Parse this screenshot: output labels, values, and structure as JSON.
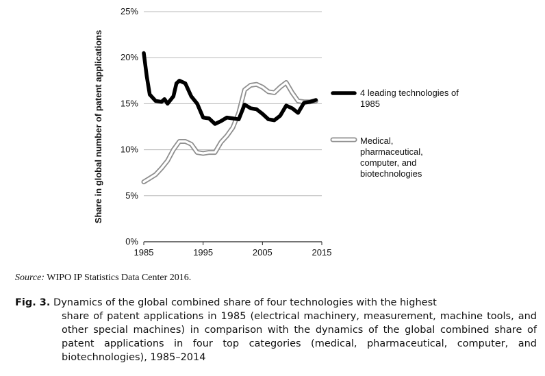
{
  "chart_data": {
    "type": "line",
    "title": "",
    "xlabel": "",
    "ylabel": "Share in global number of patent applications",
    "xlim": [
      1985,
      2015
    ],
    "ylim": [
      0,
      25
    ],
    "x_ticks": [
      "1985",
      "1995",
      "2005",
      "2015"
    ],
    "y_ticks": [
      "0%",
      "5%",
      "10%",
      "15%",
      "20%",
      "25%"
    ],
    "grid": "horizontal",
    "legend_position": "right",
    "series": [
      {
        "name": "4 leading technologies of 1985",
        "style": "black-thick",
        "x": [
          1985,
          1985.5,
          1986,
          1987,
          1988,
          1988.5,
          1989,
          1990,
          1990.5,
          1991,
          1992,
          1993,
          1994,
          1995,
          1996,
          1997,
          1998,
          1999,
          2000,
          2001,
          2002,
          2003,
          2004,
          2005,
          2006,
          2007,
          2008,
          2009,
          2010,
          2011,
          2012,
          2013,
          2014
        ],
        "values": [
          20.5,
          18.0,
          16.0,
          15.3,
          15.2,
          15.5,
          15.0,
          15.8,
          17.2,
          17.5,
          17.2,
          15.8,
          15.0,
          13.5,
          13.4,
          12.8,
          13.1,
          13.5,
          13.4,
          13.3,
          14.9,
          14.5,
          14.4,
          13.9,
          13.3,
          13.2,
          13.7,
          14.8,
          14.5,
          14.0,
          15.1,
          15.2,
          15.4
        ]
      },
      {
        "name": "Medical, pharmaceutical, computer, and biotechnologies",
        "style": "white-double",
        "x": [
          1985,
          1986,
          1987,
          1988,
          1989,
          1990,
          1991,
          1992,
          1993,
          1994,
          1995,
          1996,
          1997,
          1998,
          1999,
          2000,
          2001,
          2002,
          2003,
          2004,
          2005,
          2006,
          2007,
          2008,
          2009,
          2010,
          2011,
          2012,
          2013,
          2014
        ],
        "values": [
          6.5,
          6.9,
          7.3,
          8.0,
          8.8,
          10.0,
          10.9,
          10.9,
          10.6,
          9.7,
          9.6,
          9.7,
          9.7,
          10.8,
          11.5,
          12.4,
          14.0,
          16.5,
          17.0,
          17.1,
          16.8,
          16.3,
          16.2,
          16.8,
          17.3,
          16.2,
          15.3,
          15.2,
          15.2,
          15.3
        ]
      }
    ]
  },
  "source": {
    "label": "Source:",
    "text": "WIPO IP Statistics Data Center 2016."
  },
  "caption": {
    "label": "Fig. 3.",
    "first_line": "Dynamics of the global combined share of four technologies with the highest",
    "rest": "share of patent applications in 1985 (electrical machinery, measurement, machine tools, and other special machines) in comparison with the dynamics of the global combined share of patent applications in four top categories (medical, pharmaceutical, computer, and biotechnologies), 1985–2014"
  }
}
